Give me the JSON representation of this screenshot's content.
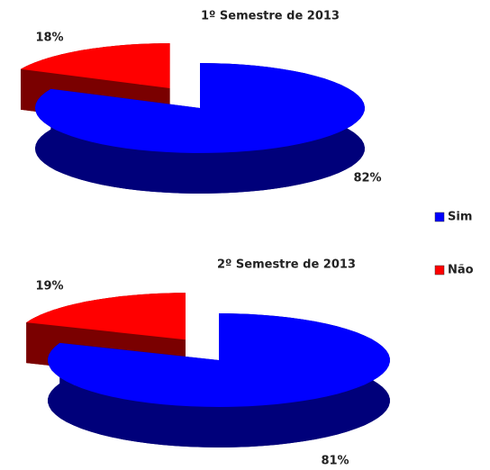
{
  "chart_data": [
    {
      "type": "pie3d",
      "title": "1º Semestre de 2013",
      "categories": [
        "Sim",
        "Não"
      ],
      "values": [
        82,
        18
      ],
      "value_labels": [
        "82%",
        "18%"
      ],
      "colors": [
        "#0000ff",
        "#ff0000"
      ],
      "legend": "right"
    },
    {
      "type": "pie3d",
      "title": "2º Semestre de 2013",
      "categories": [
        "Sim",
        "Não"
      ],
      "values": [
        81,
        19
      ],
      "value_labels": [
        "81%",
        "19%"
      ],
      "colors": [
        "#0000ff",
        "#ff0000"
      ]
    }
  ]
}
